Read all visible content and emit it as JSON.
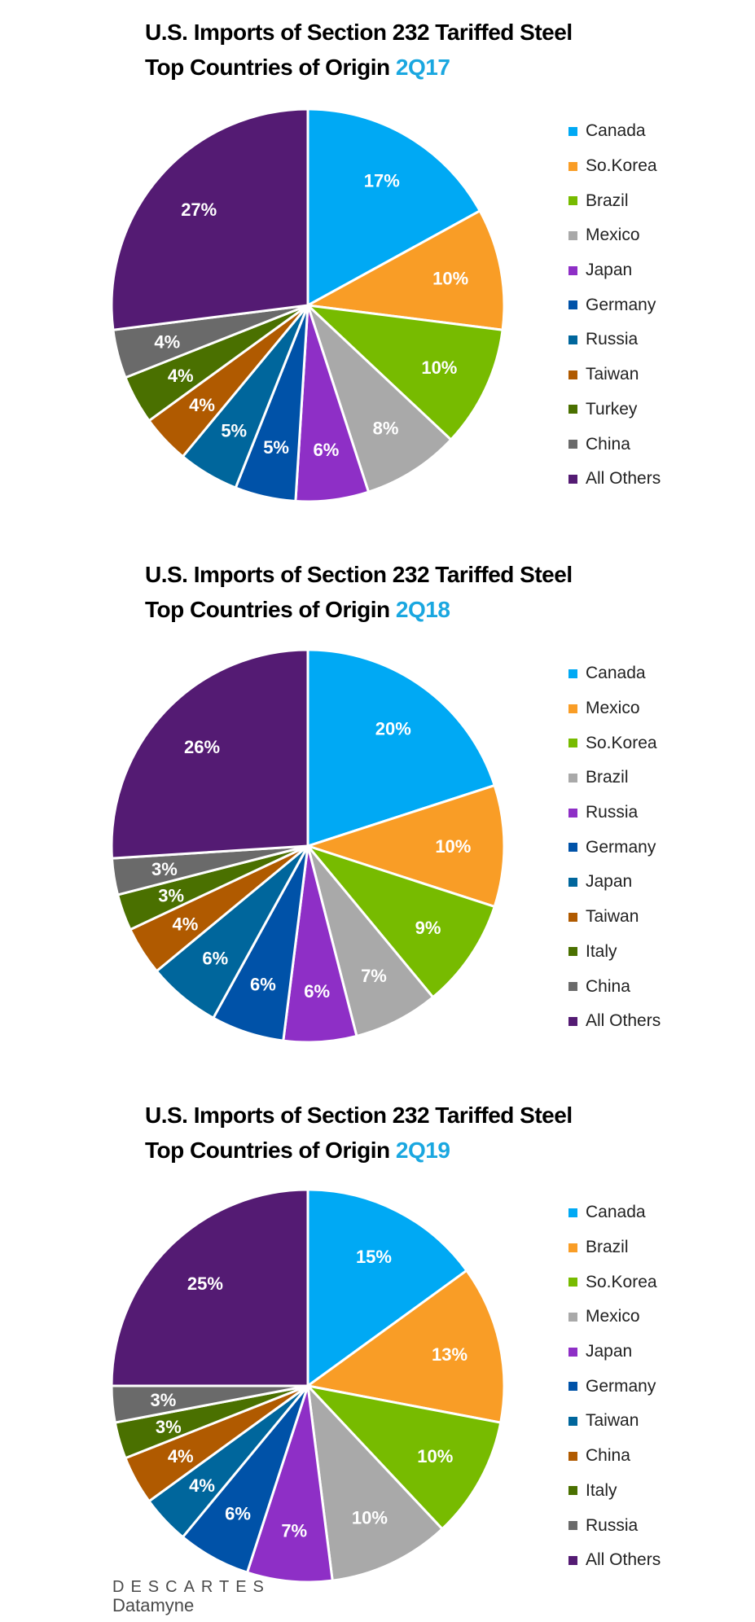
{
  "colors": [
    "#00a9f4",
    "#f99d26",
    "#77bb00",
    "#a9a9a9",
    "#8e2fc6",
    "#0052a8",
    "#00669c",
    "#b05a00",
    "#4a7000",
    "#6a6a6a",
    "#541b73"
  ],
  "chart_data": [
    {
      "type": "pie",
      "title_line1": "U.S. Imports of Section 232 Tariffed Steel",
      "title_line2": "Top Countries of Origin",
      "period": "2Q17",
      "categories": [
        "Canada",
        "So.Korea",
        "Brazil",
        "Mexico",
        "Japan",
        "Germany",
        "Russia",
        "Taiwan",
        "Turkey",
        "China",
        "All Others"
      ],
      "values": [
        17,
        10,
        10,
        8,
        6,
        5,
        5,
        4,
        4,
        4,
        27
      ],
      "labels": [
        "17%",
        "10%",
        "10%",
        "8%",
        "6%",
        "5%",
        "5%",
        "4%",
        "4%",
        "4%",
        "27%"
      ],
      "legend": "right"
    },
    {
      "type": "pie",
      "title_line1": "U.S. Imports of Section 232 Tariffed Steel",
      "title_line2": "Top Countries of Origin",
      "period": "2Q18",
      "categories": [
        "Canada",
        "Mexico",
        "So.Korea",
        "Brazil",
        "Russia",
        "Germany",
        "Japan",
        "Taiwan",
        "Italy",
        "China",
        "All Others"
      ],
      "values": [
        20,
        10,
        9,
        7,
        6,
        6,
        6,
        4,
        3,
        3,
        26
      ],
      "labels": [
        "20%",
        "10%",
        "9%",
        "7%",
        "6%",
        "6%",
        "6%",
        "4%",
        "3%",
        "3%",
        "26%"
      ],
      "legend": "right"
    },
    {
      "type": "pie",
      "title_line1": "U.S. Imports of Section 232 Tariffed Steel",
      "title_line2": "Top Countries of Origin",
      "period": "2Q19",
      "categories": [
        "Canada",
        "Brazil",
        "So.Korea",
        "Mexico",
        "Japan",
        "Germany",
        "Taiwan",
        "China",
        "Italy",
        "Russia",
        "All Others"
      ],
      "values": [
        15,
        13,
        10,
        10,
        7,
        6,
        4,
        4,
        3,
        3,
        25
      ],
      "labels": [
        "15%",
        "13%",
        "10%",
        "10%",
        "7%",
        "6%",
        "4%",
        "4%",
        "3%",
        "3%",
        "25%"
      ],
      "legend": "right"
    }
  ],
  "logo": {
    "line1": "DESCARTES",
    "line2": "Datamyne"
  }
}
